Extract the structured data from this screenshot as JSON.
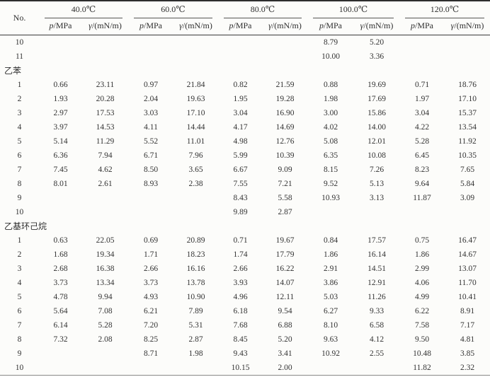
{
  "table": {
    "no_header": "No.",
    "temp_groups": [
      "40.0℃",
      "60.0℃",
      "80.0℃",
      "100.0℃",
      "120.0℃"
    ],
    "sub": {
      "p_it": "p",
      "p_rest": "/MPa",
      "g_it": "γ",
      "g_rest": "/(mN/m)"
    },
    "sections": [
      {
        "name": "",
        "rows": [
          {
            "no": "10",
            "values": [
              "",
              "",
              "",
              "",
              "",
              "",
              "8.79",
              "5.20",
              "",
              ""
            ]
          },
          {
            "no": "11",
            "values": [
              "",
              "",
              "",
              "",
              "",
              "",
              "10.00",
              "3.36",
              "",
              ""
            ]
          }
        ]
      },
      {
        "name": "乙苯",
        "rows": [
          {
            "no": "1",
            "values": [
              "0.66",
              "23.11",
              "0.97",
              "21.84",
              "0.82",
              "21.59",
              "0.88",
              "19.69",
              "0.71",
              "18.76"
            ]
          },
          {
            "no": "2",
            "values": [
              "1.93",
              "20.28",
              "2.04",
              "19.63",
              "1.95",
              "19.28",
              "1.98",
              "17.69",
              "1.97",
              "17.10"
            ]
          },
          {
            "no": "3",
            "values": [
              "2.97",
              "17.53",
              "3.03",
              "17.10",
              "3.04",
              "16.90",
              "3.00",
              "15.86",
              "3.04",
              "15.37"
            ]
          },
          {
            "no": "4",
            "values": [
              "3.97",
              "14.53",
              "4.11",
              "14.44",
              "4.17",
              "14.69",
              "4.02",
              "14.00",
              "4.22",
              "13.54"
            ]
          },
          {
            "no": "5",
            "values": [
              "5.14",
              "11.29",
              "5.52",
              "11.01",
              "4.98",
              "12.76",
              "5.08",
              "12.01",
              "5.28",
              "11.92"
            ]
          },
          {
            "no": "6",
            "values": [
              "6.36",
              "7.94",
              "6.71",
              "7.96",
              "5.99",
              "10.39",
              "6.35",
              "10.08",
              "6.45",
              "10.35"
            ]
          },
          {
            "no": "7",
            "values": [
              "7.45",
              "4.62",
              "8.50",
              "3.65",
              "6.67",
              "9.09",
              "8.15",
              "7.26",
              "8.23",
              "7.65"
            ]
          },
          {
            "no": "8",
            "values": [
              "8.01",
              "2.61",
              "8.93",
              "2.38",
              "7.55",
              "7.21",
              "9.52",
              "5.13",
              "9.64",
              "5.84"
            ]
          },
          {
            "no": "9",
            "values": [
              "",
              "",
              "",
              "",
              "8.43",
              "5.58",
              "10.93",
              "3.13",
              "11.87",
              "3.09"
            ]
          },
          {
            "no": "10",
            "values": [
              "",
              "",
              "",
              "",
              "9.89",
              "2.87",
              "",
              "",
              "",
              ""
            ]
          }
        ]
      },
      {
        "name": "乙基环己烷",
        "rows": [
          {
            "no": "1",
            "values": [
              "0.63",
              "22.05",
              "0.69",
              "20.89",
              "0.71",
              "19.67",
              "0.84",
              "17.57",
              "0.75",
              "16.47"
            ]
          },
          {
            "no": "2",
            "values": [
              "1.68",
              "19.34",
              "1.71",
              "18.23",
              "1.74",
              "17.79",
              "1.86",
              "16.14",
              "1.86",
              "14.67"
            ]
          },
          {
            "no": "3",
            "values": [
              "2.68",
              "16.38",
              "2.66",
              "16.16",
              "2.66",
              "16.22",
              "2.91",
              "14.51",
              "2.99",
              "13.07"
            ]
          },
          {
            "no": "4",
            "values": [
              "3.73",
              "13.34",
              "3.73",
              "13.78",
              "3.93",
              "14.07",
              "3.86",
              "12.91",
              "4.06",
              "11.70"
            ]
          },
          {
            "no": "5",
            "values": [
              "4.78",
              "9.94",
              "4.93",
              "10.90",
              "4.96",
              "12.11",
              "5.03",
              "11.26",
              "4.99",
              "10.41"
            ]
          },
          {
            "no": "6",
            "values": [
              "5.64",
              "7.08",
              "6.21",
              "7.89",
              "6.18",
              "9.54",
              "6.27",
              "9.33",
              "6.22",
              "8.91"
            ]
          },
          {
            "no": "7",
            "values": [
              "6.14",
              "5.28",
              "7.20",
              "5.31",
              "7.68",
              "6.88",
              "8.10",
              "6.58",
              "7.58",
              "7.17"
            ]
          },
          {
            "no": "8",
            "values": [
              "7.32",
              "2.08",
              "8.25",
              "2.87",
              "8.45",
              "5.20",
              "9.63",
              "4.12",
              "9.50",
              "4.81"
            ]
          },
          {
            "no": "9",
            "values": [
              "",
              "",
              "8.71",
              "1.98",
              "9.43",
              "3.41",
              "10.92",
              "2.55",
              "10.48",
              "3.85"
            ]
          },
          {
            "no": "10",
            "values": [
              "",
              "",
              "",
              "",
              "10.15",
              "2.00",
              "",
              "",
              "11.82",
              "2.32"
            ]
          }
        ]
      }
    ]
  }
}
